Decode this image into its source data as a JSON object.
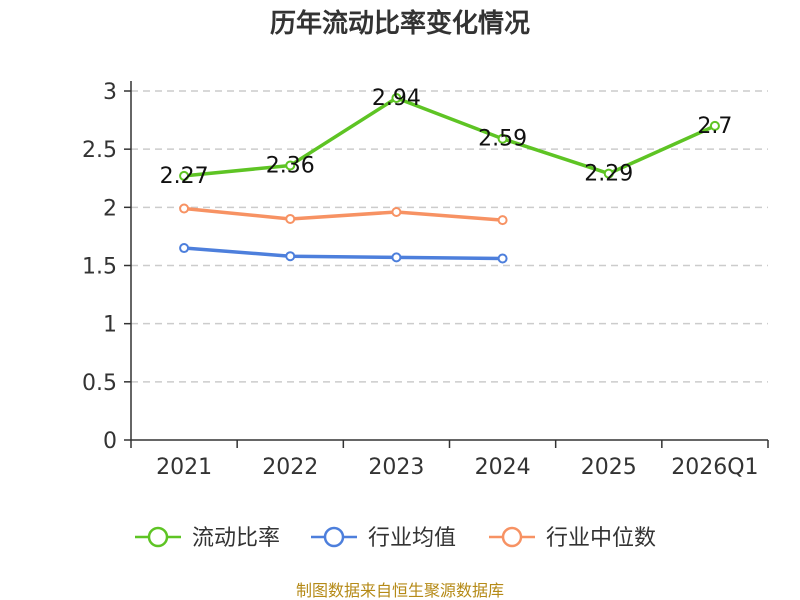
{
  "chart_data": {
    "type": "line",
    "title": "历年流动比率变化情况",
    "categories": [
      "2021",
      "2022",
      "2023",
      "2024",
      "2025",
      "2026Q1"
    ],
    "ylim": [
      0,
      3
    ],
    "yticks": [
      "0",
      "0.5",
      "1",
      "1.5",
      "2",
      "2.5",
      "3"
    ],
    "grid": true,
    "legend_position": "bottom",
    "series": [
      {
        "name": "流动比率",
        "color": "#5ec424",
        "values": [
          2.27,
          2.36,
          2.94,
          2.59,
          2.29,
          2.7
        ],
        "labels": [
          "2.27",
          "2.36",
          "2.94",
          "2.59",
          "2.29",
          "2.7"
        ]
      },
      {
        "name": "行业均值",
        "color": "#4d7fdc",
        "values": [
          1.65,
          1.58,
          1.57,
          1.56,
          null,
          null
        ]
      },
      {
        "name": "行业中位数",
        "color": "#f79263",
        "values": [
          1.99,
          1.9,
          1.96,
          1.89,
          null,
          null
        ]
      }
    ]
  },
  "source": "制图数据来自恒生聚源数据库"
}
